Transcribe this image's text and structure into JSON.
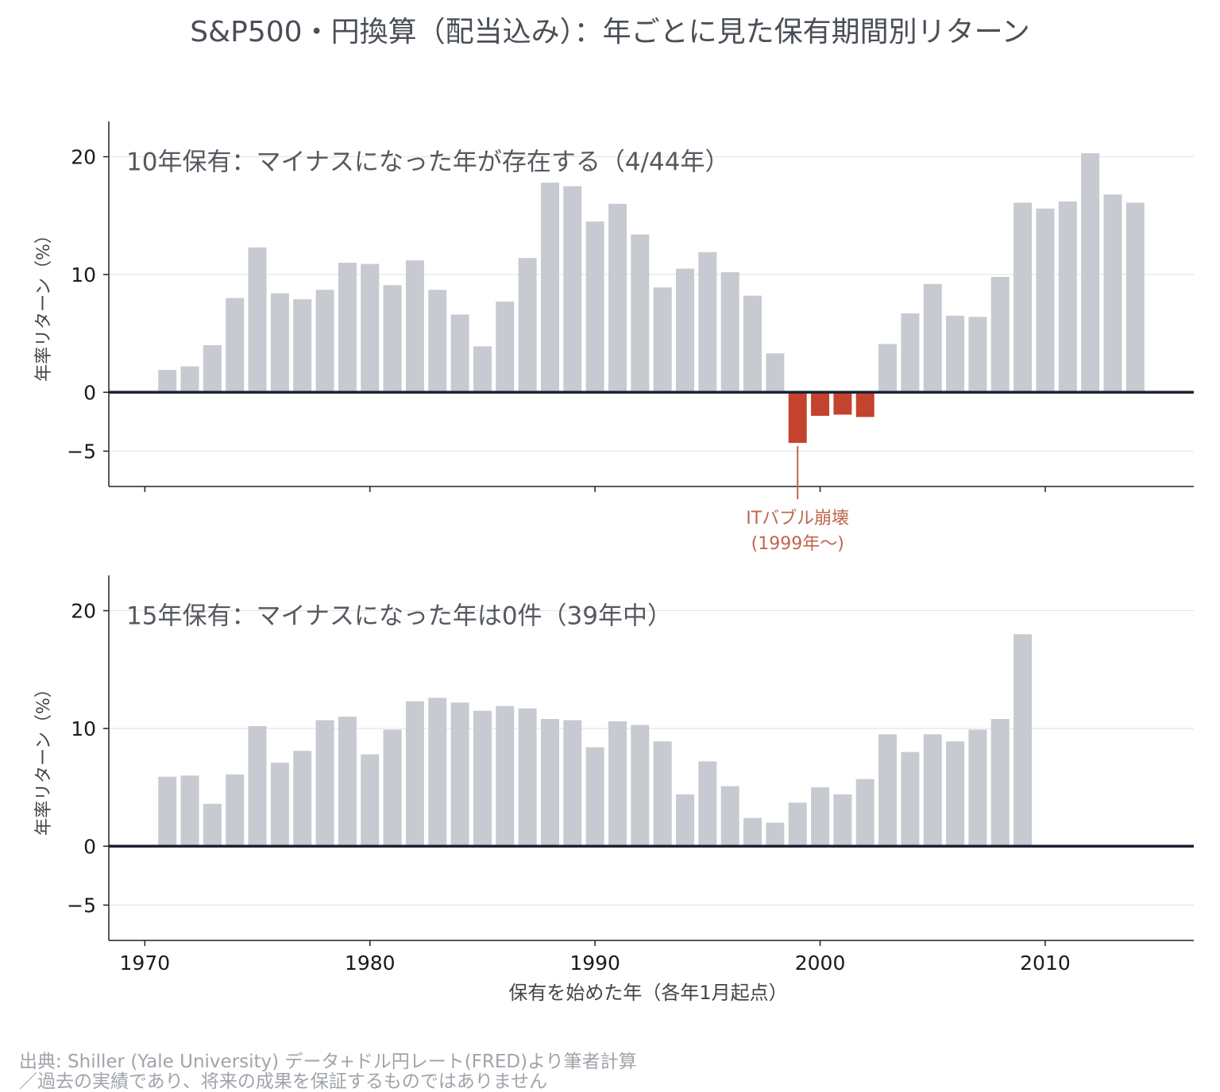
{
  "title": "S&P500・円換算（配当込み）：年ごとに見た保有期間別リターン",
  "xlabel": "保有を始めた年（各年1月起点）",
  "source_lines": [
    "出典: Shiller (Yale University) データ+ドル円レート(FRED)より筆者計算",
    "／過去の実績であり、将来の成果を保証するものではありません"
  ],
  "colors": {
    "positive": "#c7cad0",
    "negative": "#c4432e",
    "zero_line": "#1c2230",
    "grid": "#e4e6ea",
    "annotation": "#c0664f"
  },
  "chart_data": [
    {
      "type": "bar",
      "title": "10年保有：マイナスになった年が存在する（4/44年）",
      "ylabel": "年率リターン（%）",
      "xlabel": "",
      "xlim": [
        1968.4,
        2016.6
      ],
      "ylim": [
        -8,
        23
      ],
      "yticks": [
        -5,
        0,
        10,
        20
      ],
      "xticks": [
        1970,
        1980,
        1990,
        2000,
        2010
      ],
      "show_xtick_labels": false,
      "grid": "horizontal",
      "x": [
        1971,
        1972,
        1973,
        1974,
        1975,
        1976,
        1977,
        1978,
        1979,
        1980,
        1981,
        1982,
        1983,
        1984,
        1985,
        1986,
        1987,
        1988,
        1989,
        1990,
        1991,
        1992,
        1993,
        1994,
        1995,
        1996,
        1997,
        1998,
        1999,
        2000,
        2001,
        2002,
        2003,
        2004,
        2005,
        2006,
        2007,
        2008,
        2009,
        2010,
        2011,
        2012,
        2013,
        2014
      ],
      "values": [
        1.9,
        2.2,
        4.0,
        8.0,
        12.3,
        8.4,
        7.9,
        8.7,
        11.0,
        10.9,
        9.1,
        11.2,
        8.7,
        6.6,
        3.9,
        7.7,
        11.4,
        17.8,
        17.5,
        14.5,
        16.0,
        13.4,
        8.9,
        10.5,
        11.9,
        10.2,
        8.2,
        3.3,
        -4.3,
        -2.0,
        -1.9,
        -2.1,
        4.1,
        6.7,
        9.2,
        6.5,
        6.4,
        9.8,
        16.1,
        15.6,
        16.2,
        20.3,
        16.8,
        16.1
      ],
      "annotation": {
        "lines": [
          "ITバブル崩壊",
          "(1999年〜)"
        ],
        "x": 1999,
        "y": -4.3
      }
    },
    {
      "type": "bar",
      "title": "15年保有：マイナスになった年は0件（39年中）",
      "ylabel": "年率リターン（%）",
      "xlabel": "保有を始めた年（各年1月起点）",
      "xlim": [
        1968.4,
        2016.6
      ],
      "ylim": [
        -8,
        23
      ],
      "yticks": [
        -5,
        0,
        10,
        20
      ],
      "xticks": [
        1970,
        1980,
        1990,
        2000,
        2010
      ],
      "show_xtick_labels": true,
      "grid": "horizontal",
      "x": [
        1971,
        1972,
        1973,
        1974,
        1975,
        1976,
        1977,
        1978,
        1979,
        1980,
        1981,
        1982,
        1983,
        1984,
        1985,
        1986,
        1987,
        1988,
        1989,
        1990,
        1991,
        1992,
        1993,
        1994,
        1995,
        1996,
        1997,
        1998,
        1999,
        2000,
        2001,
        2002,
        2003,
        2004,
        2005,
        2006,
        2007,
        2008,
        2009
      ],
      "values": [
        5.9,
        6.0,
        3.6,
        6.1,
        10.2,
        7.1,
        8.1,
        10.7,
        11.0,
        7.8,
        9.9,
        12.3,
        12.6,
        12.2,
        11.5,
        11.9,
        11.7,
        10.8,
        10.7,
        8.4,
        10.6,
        10.3,
        8.9,
        4.4,
        7.2,
        5.1,
        2.4,
        2.0,
        3.7,
        5.0,
        4.4,
        5.7,
        9.5,
        8.0,
        9.5,
        8.9,
        9.9,
        10.8,
        18.0
      ]
    }
  ]
}
